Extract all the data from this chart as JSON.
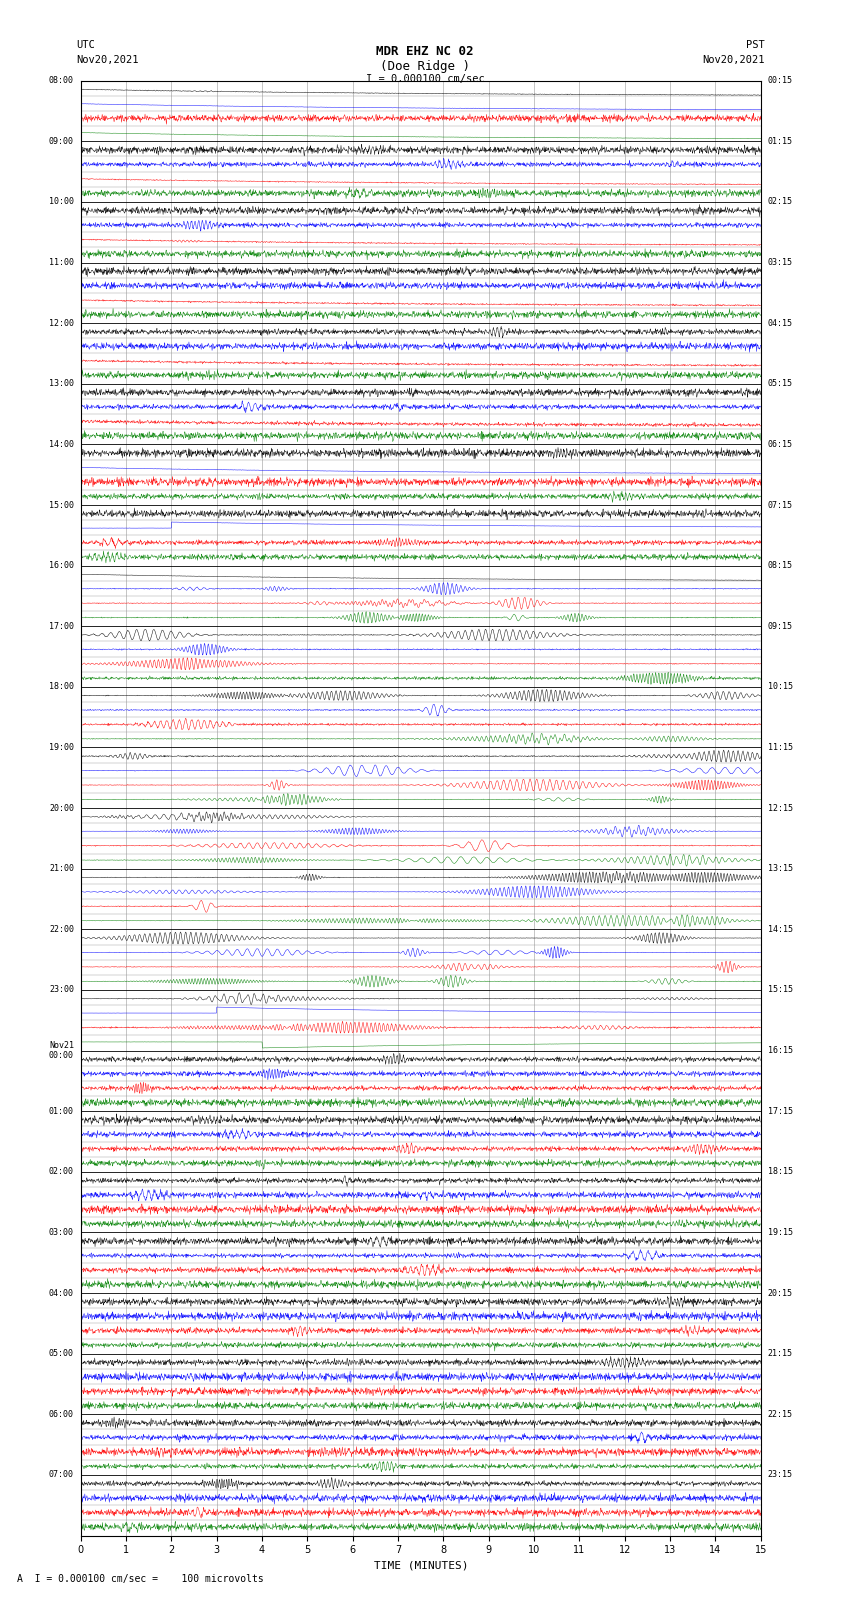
{
  "title_line1": "MDR EHZ NC 02",
  "title_line2": "(Doe Ridge )",
  "scale_label": "I = 0.000100 cm/sec",
  "bottom_label": "A  I = 0.000100 cm/sec =    100 microvolts",
  "utc_label": "UTC",
  "utc_date": "Nov20,2021",
  "pst_label": "PST",
  "pst_date": "Nov20,2021",
  "xlabel": "TIME (MINUTES)",
  "xlim": [
    0,
    15
  ],
  "xticks": [
    0,
    1,
    2,
    3,
    4,
    5,
    6,
    7,
    8,
    9,
    10,
    11,
    12,
    13,
    14,
    15
  ],
  "colors": [
    "black",
    "blue",
    "red",
    "green"
  ],
  "bg_color": "#ffffff",
  "grid_color": "#999999",
  "figsize": [
    8.5,
    16.13
  ],
  "dpi": 100,
  "left_times": [
    "08:00",
    "09:00",
    "10:00",
    "11:00",
    "12:00",
    "13:00",
    "14:00",
    "15:00",
    "16:00",
    "17:00",
    "18:00",
    "19:00",
    "20:00",
    "21:00",
    "22:00",
    "23:00",
    "Nov21\n00:00",
    "01:00",
    "02:00",
    "03:00",
    "04:00",
    "05:00",
    "06:00",
    "07:00"
  ],
  "right_times": [
    "00:15",
    "01:15",
    "02:15",
    "03:15",
    "04:15",
    "05:15",
    "06:15",
    "07:15",
    "08:15",
    "09:15",
    "10:15",
    "11:15",
    "12:15",
    "13:15",
    "14:15",
    "15:15",
    "16:15",
    "17:15",
    "18:15",
    "19:15",
    "20:15",
    "21:15",
    "22:15",
    "23:15"
  ]
}
